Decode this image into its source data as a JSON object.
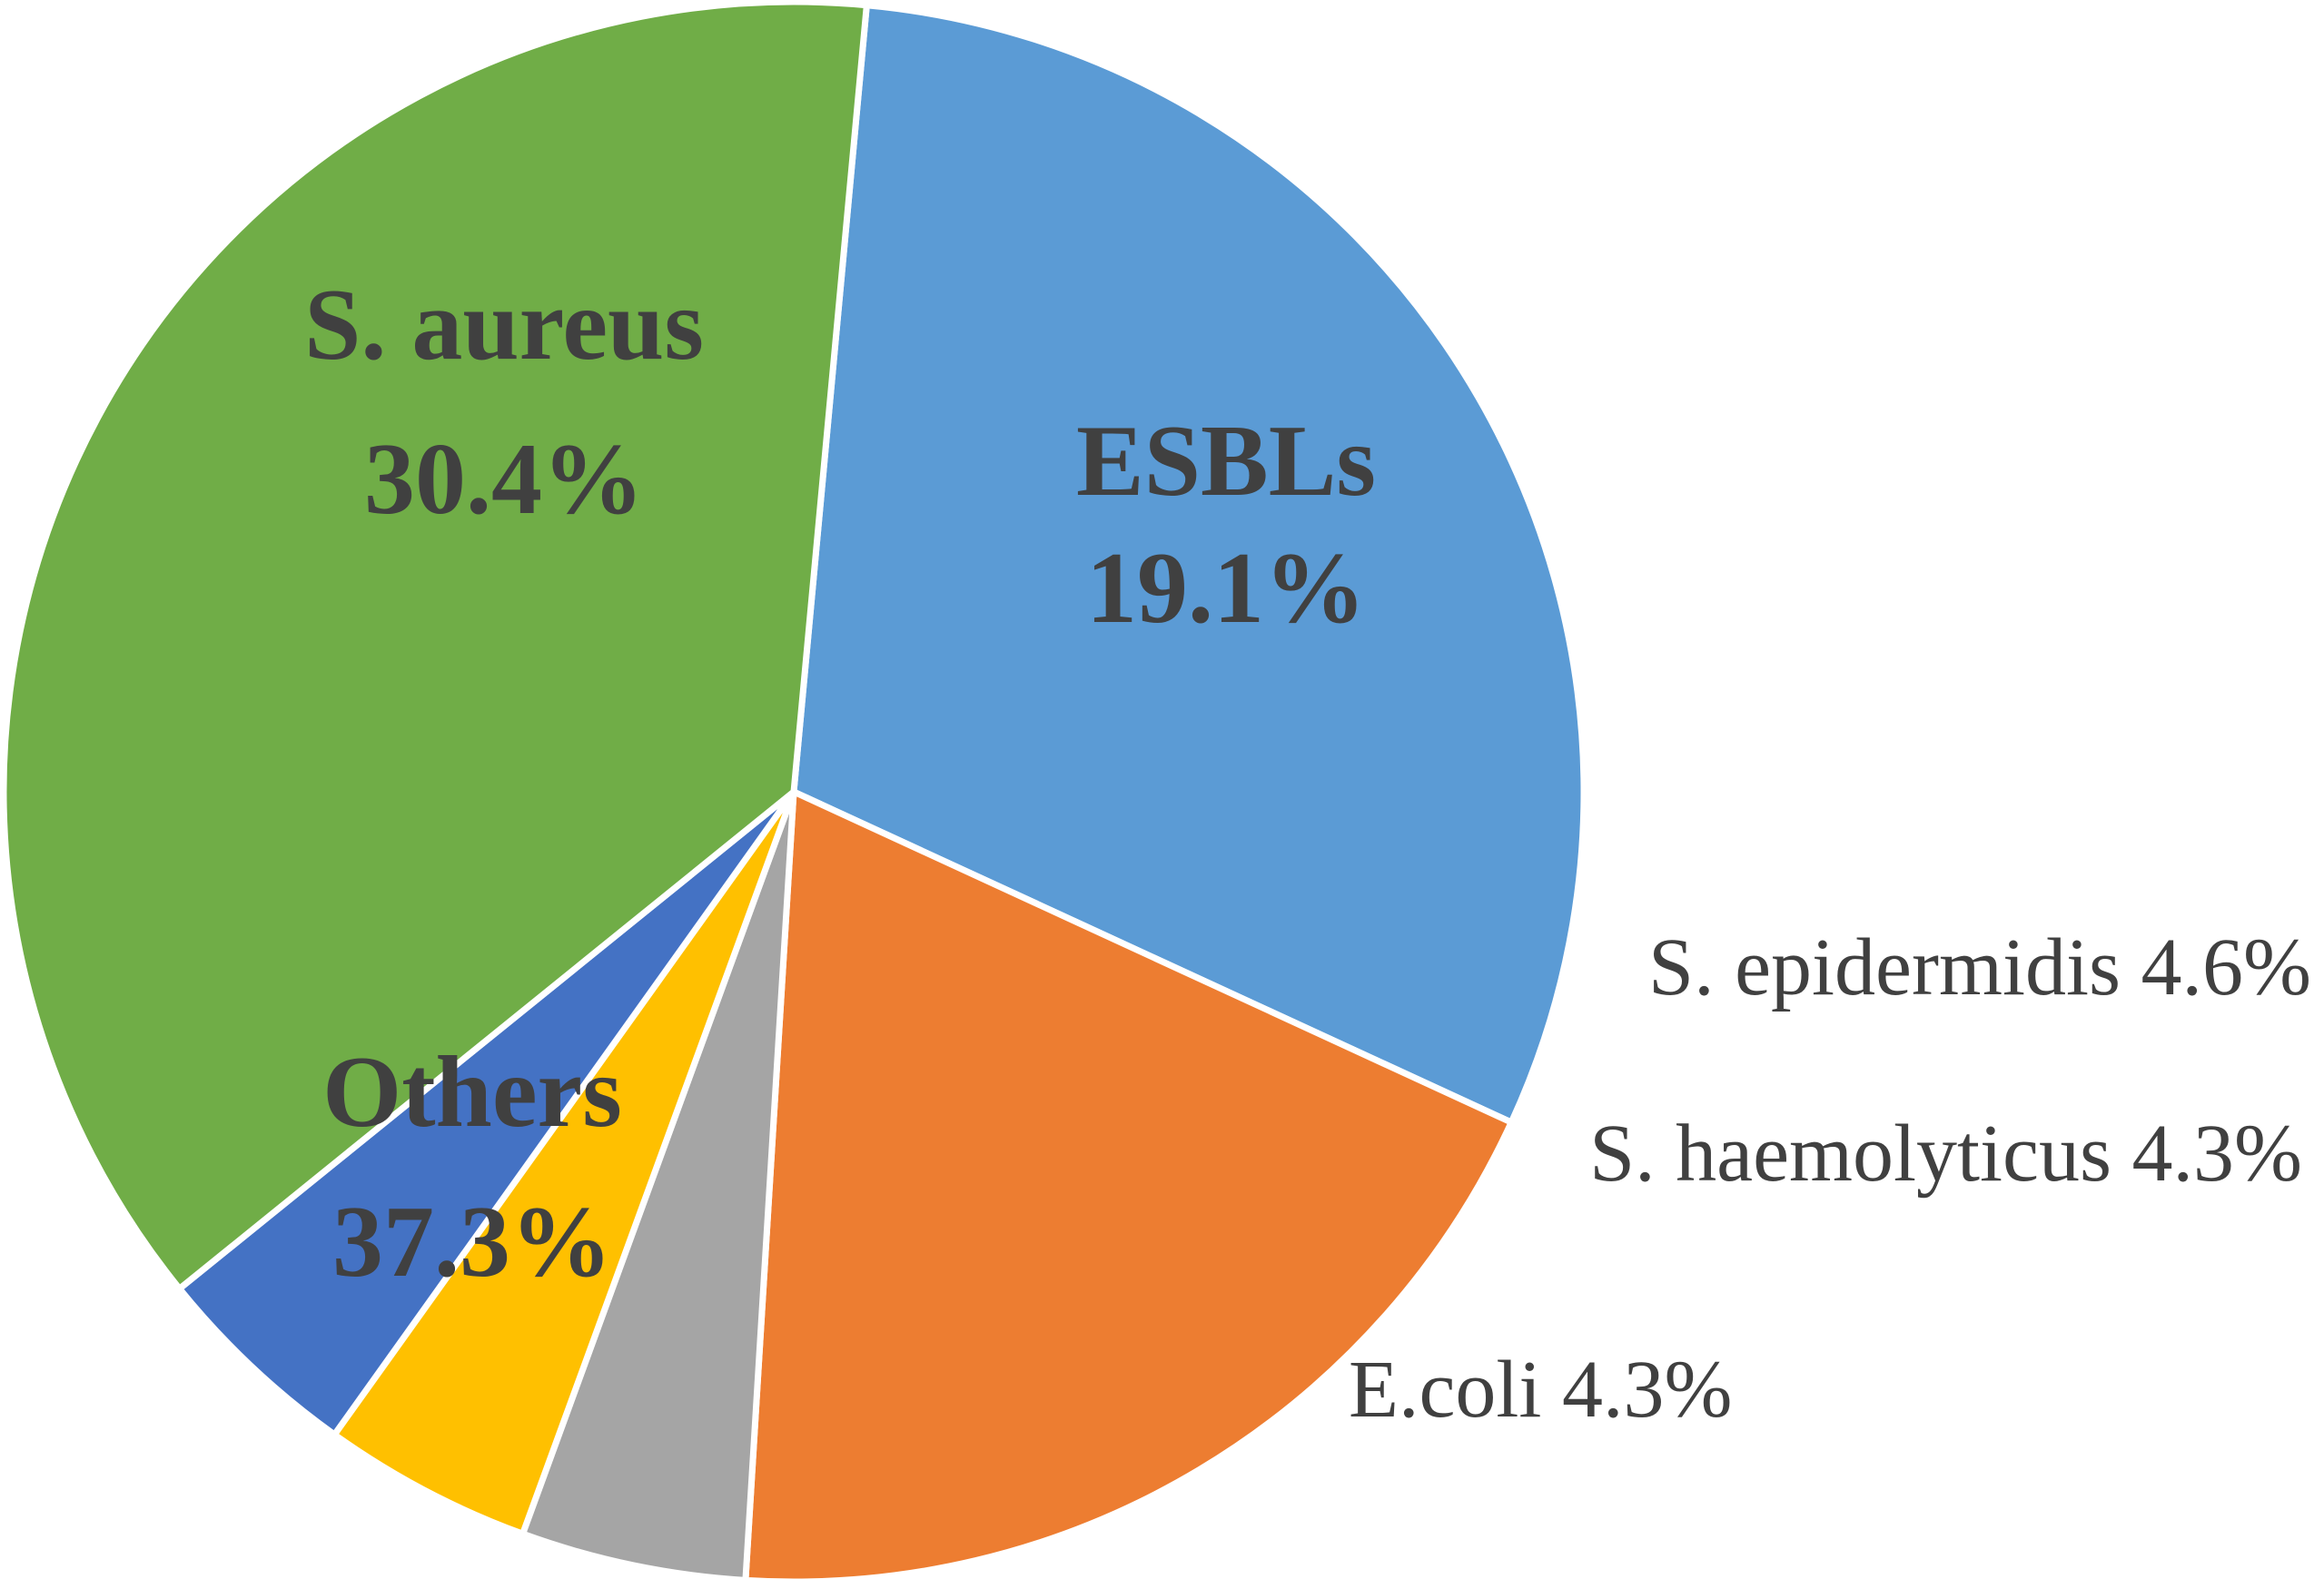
{
  "chart_data": {
    "type": "pie",
    "title": "",
    "slices": [
      {
        "label": "S. aureus",
        "value": 30.4,
        "value_label": "30.4%",
        "color": "#5B9BD5",
        "label_style": "inside-bold"
      },
      {
        "label": "ESBLs",
        "value": 19.1,
        "value_label": "19.1%",
        "color": "#ED7D31",
        "label_style": "inside-bold"
      },
      {
        "label": "S. epidermidis",
        "value": 4.6,
        "value_label": "4.6%",
        "color": "#A5A5A5",
        "label_style": "outside"
      },
      {
        "label": "S. haemolyticus",
        "value": 4.3,
        "value_label": "4.3%",
        "color": "#FFC000",
        "label_style": "outside"
      },
      {
        "label": "E.coli",
        "value": 4.3,
        "value_label": "4.3%",
        "color": "#4472C4",
        "label_style": "outside"
      },
      {
        "label": "Others",
        "value": 37.3,
        "value_label": "37.3%",
        "color": "#70AD47",
        "label_style": "inside-bold"
      }
    ],
    "start_angle_deg": -84.7,
    "direction": "clockwise",
    "slice_border_color": "#FFFFFF",
    "label_color": "#404040",
    "legend": "none"
  }
}
